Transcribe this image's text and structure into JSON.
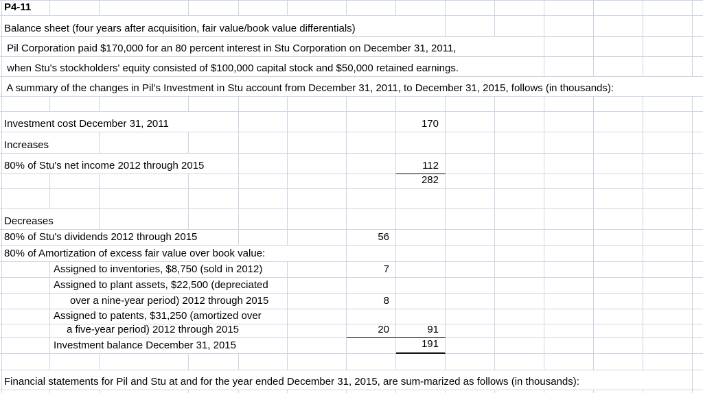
{
  "sheet": {
    "colors": {
      "text": "#000000",
      "gridline": "#ccd4e3",
      "total_rule": "#000000"
    },
    "header": {
      "problem_id": "P4-11"
    },
    "intro_lines": [
      "Balance sheet (four years after acquisition, fair value/book value differentials)",
      " Pil Corporation paid $170,000 for an 80 percent interest in Stu Corporation on December 31, 2011,",
      " when Stu's stockholders' equity consisted of $100,000 capital stock and $50,000 retained earnings.",
      " A summary of the changes in Pil's Investment in Stu account from December 31, 2011, to December 31, 2015, follows (in thousands):"
    ],
    "schedule": {
      "investment_cost": {
        "label": "Investment cost December 31, 2011",
        "amount": "170"
      },
      "increases_header": "Increases",
      "net_income": {
        "label": "80% of Stu's net income 2012 through 2015",
        "amount": "112"
      },
      "subtotal": {
        "amount": "282"
      },
      "decreases_header": "Decreases",
      "dividends": {
        "label": "80% of Stu's dividends 2012 through 2015",
        "amount": "56"
      },
      "amortization_header": "80% of Amortization of excess fair value over book value:",
      "inventories": {
        "label": "Assigned to inventories, $8,750 (sold in 2012)",
        "amount": "7"
      },
      "plant_assets": {
        "line1": "Assigned to plant assets, $22,500 (depreciated",
        "line2": "over a nine-year period) 2012 through 2015",
        "amount": "8"
      },
      "patents": {
        "line1": "Assigned to patents, $31,250 (amortized over",
        "line2": "a five-year period) 2012 through 2015",
        "amount": "20",
        "decreases_total": "91"
      },
      "balance": {
        "label": "Investment balance December 31, 2015",
        "amount": "191"
      }
    },
    "footer_line": "Financial statements for Pil and Stu at and for the year ended December 31, 2015, are sum-marized as follows (in thousands):"
  }
}
